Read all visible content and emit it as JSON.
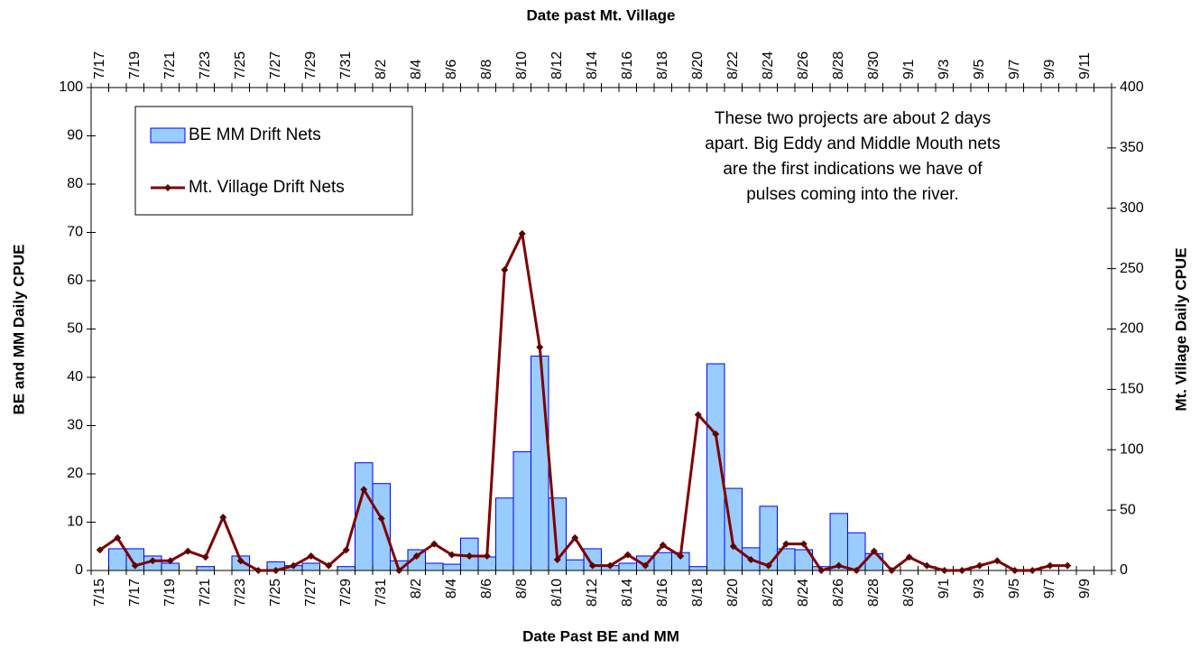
{
  "chart_data": {
    "type": "combo",
    "x_title": "Date Past BE and MM",
    "x2_title": "Date past Mt. Village",
    "y_title": "BE and MM Daily CPUE",
    "y2_title": "Mt. Village Daily CPUE",
    "annotation": [
      "These two projects are about 2 days",
      "apart. Big Eddy and Middle Mouth nets",
      "are the first indications we have of",
      "pulses coming into the river."
    ],
    "categories": [
      "7/15",
      null,
      "7/17",
      null,
      "7/19",
      null,
      "7/21",
      null,
      "7/23",
      null,
      "7/25",
      null,
      "7/27",
      null,
      "7/29",
      null,
      "7/31",
      null,
      "8/2",
      null,
      "8/4",
      null,
      "8/6",
      null,
      "8/8",
      null,
      "8/10",
      null,
      "8/12",
      null,
      "8/14",
      null,
      "8/16",
      null,
      "8/18",
      null,
      "8/20",
      null,
      "8/22",
      null,
      "8/24",
      null,
      "8/26",
      null,
      "8/28",
      null,
      "8/30",
      null,
      "9/1",
      null,
      "9/3",
      null,
      "9/5",
      null,
      "9/7",
      null,
      "9/9",
      null
    ],
    "x2_categories": [
      "7/17",
      null,
      "7/19",
      null,
      "7/21",
      null,
      "7/23",
      null,
      "7/25",
      null,
      "7/27",
      null,
      "7/29",
      null,
      "7/31",
      null,
      "8/2",
      null,
      "8/4",
      null,
      "8/6",
      null,
      "8/8",
      null,
      "8/10",
      null,
      "8/12",
      null,
      "8/14",
      null,
      "8/16",
      null,
      "8/18",
      null,
      "8/20",
      null,
      "8/22",
      null,
      "8/24",
      null,
      "8/26",
      null,
      "8/28",
      null,
      "8/30",
      null,
      "9/1",
      null,
      "9/3",
      null,
      "9/5",
      null,
      "9/7",
      null,
      "9/9",
      null,
      "9/11",
      null
    ],
    "series": [
      {
        "name": "BE MM Drift Nets",
        "type": "bar",
        "axis": "y",
        "color": "#99ccff",
        "stroke": "#0000ff",
        "values": [
          null,
          4.5,
          4.5,
          3,
          1.5,
          null,
          0.8,
          null,
          3,
          null,
          1.8,
          1,
          1.5,
          null,
          0.8,
          22.3,
          18,
          2,
          4.3,
          1.5,
          1.3,
          6.7,
          2.8,
          15,
          24.6,
          44.4,
          15,
          2.2,
          4.5,
          1,
          1.5,
          3,
          3.7,
          3.7,
          0.8,
          42.8,
          17,
          4.7,
          13.3,
          4.5,
          4.3,
          0.8,
          11.8,
          7.8,
          3.5,
          null,
          null,
          null,
          null,
          null,
          null,
          null,
          null,
          null,
          null,
          null,
          null,
          null
        ]
      },
      {
        "name": "Mt. Village Drift Nets",
        "type": "line",
        "axis": "y2",
        "color": "#800000",
        "values": [
          17,
          27,
          4,
          8,
          8,
          16,
          11,
          44,
          8,
          0,
          0,
          4,
          12,
          4,
          17,
          67,
          43,
          0,
          12,
          22,
          13,
          12,
          12,
          249,
          279,
          185,
          9,
          27,
          4,
          4,
          13,
          4,
          21,
          12,
          129,
          113,
          20,
          9,
          4,
          22,
          22,
          0,
          4,
          0,
          16,
          0,
          11,
          4,
          0,
          0,
          4,
          8,
          0,
          0,
          4,
          4,
          null,
          null
        ]
      }
    ],
    "ylim": [
      0,
      100
    ],
    "yticks": [
      0,
      10,
      20,
      30,
      40,
      50,
      60,
      70,
      80,
      90,
      100
    ],
    "y2lim": [
      0,
      400
    ],
    "y2ticks": [
      0,
      50,
      100,
      150,
      200,
      250,
      300,
      350,
      400
    ]
  }
}
